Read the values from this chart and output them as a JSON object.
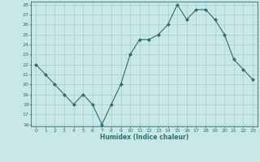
{
  "x": [
    0,
    1,
    2,
    3,
    4,
    5,
    6,
    7,
    8,
    9,
    10,
    11,
    12,
    13,
    14,
    15,
    16,
    17,
    18,
    19,
    20,
    21,
    22,
    23
  ],
  "y": [
    22,
    21,
    20,
    19,
    18,
    19,
    18,
    16,
    18,
    20,
    23,
    24.5,
    24.5,
    25,
    26,
    28,
    26.5,
    27.5,
    27.5,
    26.5,
    25,
    22.5,
    21.5,
    20.5
  ],
  "title": "",
  "xlabel": "Humidex (Indice chaleur)",
  "ylabel": "",
  "ylim": [
    16,
    28
  ],
  "xlim": [
    -0.5,
    23.5
  ],
  "line_color": "#2e6e6e",
  "marker_color": "#2e6e6e",
  "bg_color": "#c8e8e8",
  "grid_color": "#a8cccc",
  "yticks": [
    16,
    17,
    18,
    19,
    20,
    21,
    22,
    23,
    24,
    25,
    26,
    27,
    28
  ],
  "xticks": [
    0,
    1,
    2,
    3,
    4,
    5,
    6,
    7,
    8,
    9,
    10,
    11,
    12,
    13,
    14,
    15,
    16,
    17,
    18,
    19,
    20,
    21,
    22,
    23
  ]
}
